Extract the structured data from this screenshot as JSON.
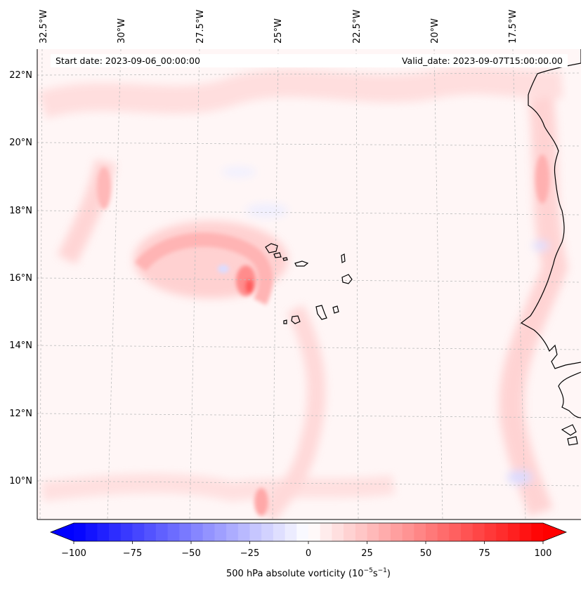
{
  "map": {
    "start_label": "Start date: 2023-09-06_00:00:00",
    "valid_label": "Valid_date: 2023-09-07T15:00:00.00",
    "lon_labels": [
      "32.5°W",
      "30°W",
      "27.5°W",
      "25°W",
      "22.5°W",
      "20°W",
      "17.5°W"
    ],
    "lat_labels": [
      "22°N",
      "20°N",
      "18°N",
      "16°N",
      "14°N",
      "12°N",
      "10°N"
    ],
    "colorbar": {
      "title": "500 hPa absolute vorticity (10",
      "title_exp1": "−5",
      "title_mid": "s",
      "title_exp2": "−1",
      "title_end": ")",
      "min": -100,
      "max": 100,
      "ticks": [
        "−100",
        "−75",
        "−50",
        "−25",
        "0",
        "25",
        "50",
        "75",
        "100"
      ],
      "negative_color": "#0000ff",
      "positive_color": "#ff0000"
    }
  }
}
